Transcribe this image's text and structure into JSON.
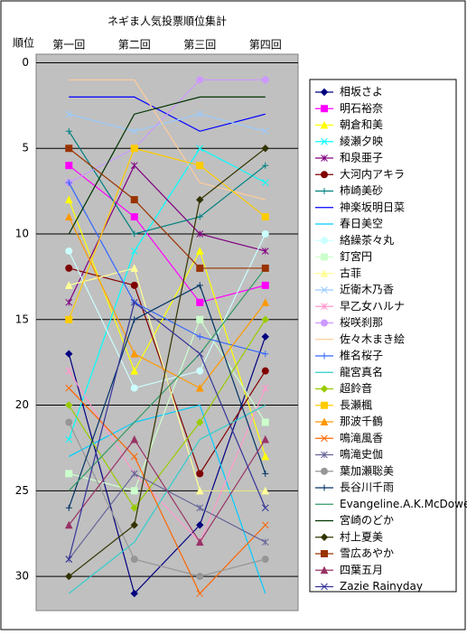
{
  "chart_data": {
    "type": "line",
    "title": "ネギま人気投票順位集計",
    "y_label": "順位",
    "categories": [
      "第一回",
      "第二回",
      "第三回",
      "第四回"
    ],
    "ylim": [
      -0.5,
      32
    ],
    "y_inverted": true,
    "yticks": [
      0,
      5,
      10,
      15,
      20,
      25,
      30
    ],
    "grid": true,
    "legend": "right",
    "series": [
      {
        "name": "相坂さよ",
        "color": "#000080",
        "marker": "diamond",
        "values": [
          17,
          31,
          27,
          16
        ]
      },
      {
        "name": "明石裕奈",
        "color": "#ff00ff",
        "marker": "square",
        "values": [
          6,
          9,
          14,
          13
        ]
      },
      {
        "name": "朝倉和美",
        "color": "#ffff00",
        "marker": "triangle",
        "values": [
          8,
          18,
          11,
          23
        ]
      },
      {
        "name": "綾瀬夕映",
        "color": "#00ffff",
        "marker": "x",
        "values": [
          22,
          11,
          5,
          7
        ]
      },
      {
        "name": "和泉亜子",
        "color": "#800080",
        "marker": "star",
        "values": [
          14,
          6,
          10,
          11
        ]
      },
      {
        "name": "大河内アキラ",
        "color": "#800000",
        "marker": "circle",
        "values": [
          12,
          13,
          24,
          18
        ]
      },
      {
        "name": "柿崎美砂",
        "color": "#008080",
        "marker": "plus",
        "values": [
          4,
          10,
          9,
          6
        ]
      },
      {
        "name": "神楽坂明日菜",
        "color": "#0000ff",
        "marker": "dash",
        "values": [
          2,
          2,
          4,
          3
        ]
      },
      {
        "name": "春日美空",
        "color": "#00ccff",
        "marker": "dash",
        "values": [
          23,
          21,
          20,
          31
        ]
      },
      {
        "name": "絡繰茶々丸",
        "color": "#ccffff",
        "marker": "circle",
        "values": [
          11,
          19,
          18,
          10
        ]
      },
      {
        "name": "釘宮円",
        "color": "#ccffcc",
        "marker": "square",
        "values": [
          24,
          25,
          15,
          21
        ]
      },
      {
        "name": "古菲",
        "color": "#ffff99",
        "marker": "triangle",
        "values": [
          13,
          12,
          25,
          25
        ]
      },
      {
        "name": "近衛木乃香",
        "color": "#99ccff",
        "marker": "x",
        "values": [
          3,
          4,
          3,
          4
        ]
      },
      {
        "name": "早乙女ハルナ",
        "color": "#ff99cc",
        "marker": "star",
        "values": [
          18,
          24,
          28,
          19
        ]
      },
      {
        "name": "桜咲刹那",
        "color": "#cc99ff",
        "marker": "circle",
        "values": [
          7,
          5,
          1,
          1
        ]
      },
      {
        "name": "佐々木まき絵",
        "color": "#ffcc99",
        "marker": "dash",
        "values": [
          1,
          1,
          7,
          8
        ]
      },
      {
        "name": "椎名桜子",
        "color": "#3366ff",
        "marker": "plus",
        "values": [
          7,
          14,
          16,
          17
        ]
      },
      {
        "name": "龍宮真名",
        "color": "#33cccc",
        "marker": "dash",
        "values": [
          31,
          28,
          22,
          20
        ]
      },
      {
        "name": "超鈴音",
        "color": "#99cc00",
        "marker": "diamond",
        "values": [
          20,
          26,
          21,
          15
        ]
      },
      {
        "name": "長瀬楓",
        "color": "#ffcc00",
        "marker": "square",
        "values": [
          15,
          5,
          6,
          9
        ]
      },
      {
        "name": "那波千鶴",
        "color": "#ff9900",
        "marker": "triangle",
        "values": [
          9,
          17,
          19,
          14
        ]
      },
      {
        "name": "鳴滝風香",
        "color": "#ff6600",
        "marker": "x",
        "values": [
          19,
          23,
          31,
          27
        ]
      },
      {
        "name": "鳴滝史伽",
        "color": "#666699",
        "marker": "star",
        "values": [
          29,
          24,
          26,
          28
        ]
      },
      {
        "name": "葉加瀬聡美",
        "color": "#969696",
        "marker": "circle",
        "values": [
          21,
          29,
          30,
          29
        ]
      },
      {
        "name": "長谷川千雨",
        "color": "#003366",
        "marker": "plus",
        "values": [
          26,
          15,
          13,
          24
        ]
      },
      {
        "name": "Evangeline.A.K.McDowell",
        "color": "#339966",
        "marker": "dash",
        "values": [
          25,
          21,
          17,
          12
        ]
      },
      {
        "name": "宮崎のどか",
        "color": "#003300",
        "marker": "dash",
        "values": [
          10,
          3,
          2,
          2
        ]
      },
      {
        "name": "村上夏美",
        "color": "#333300",
        "marker": "diamond",
        "values": [
          30,
          27,
          8,
          5
        ]
      },
      {
        "name": "雪広あやか",
        "color": "#993300",
        "marker": "square",
        "values": [
          5,
          8,
          12,
          12
        ]
      },
      {
        "name": "四葉五月",
        "color": "#993366",
        "marker": "triangle",
        "values": [
          27,
          22,
          28,
          22
        ]
      },
      {
        "name": "Zazie Rainyday",
        "color": "#333399",
        "marker": "x",
        "values": [
          29,
          14,
          17,
          26
        ]
      }
    ]
  }
}
